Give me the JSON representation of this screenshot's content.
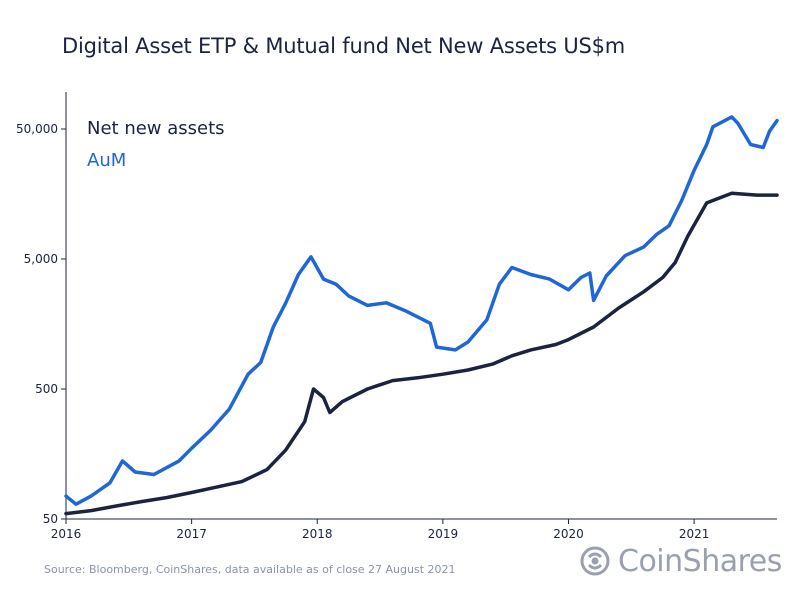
{
  "chart_data": {
    "type": "line",
    "title": "Digital Asset ETP & Mutual fund Net New Assets US$m",
    "y_scale": "log",
    "ylim": [
      50,
      100000
    ],
    "xlim": [
      2016.0,
      2021.66
    ],
    "y_ticks": [
      50,
      500,
      5000,
      50000
    ],
    "y_tick_labels": [
      "50",
      "500",
      "5,000",
      "50,000"
    ],
    "x_ticks": [
      2016,
      2017,
      2018,
      2019,
      2020,
      2021
    ],
    "x_tick_labels": [
      "2016",
      "2017",
      "2018",
      "2019",
      "2020",
      "2021"
    ],
    "legend": [
      "Net new assets",
      "AuM"
    ],
    "series": [
      {
        "name": "Net new assets",
        "color": "#1b2340",
        "points": [
          [
            2016.0,
            55
          ],
          [
            2016.2,
            58
          ],
          [
            2016.4,
            63
          ],
          [
            2016.6,
            68
          ],
          [
            2016.8,
            73
          ],
          [
            2017.0,
            80
          ],
          [
            2017.2,
            88
          ],
          [
            2017.4,
            97
          ],
          [
            2017.6,
            120
          ],
          [
            2017.75,
            170
          ],
          [
            2017.9,
            280
          ],
          [
            2017.97,
            500
          ],
          [
            2018.05,
            430
          ],
          [
            2018.1,
            330
          ],
          [
            2018.2,
            400
          ],
          [
            2018.4,
            500
          ],
          [
            2018.6,
            580
          ],
          [
            2018.8,
            610
          ],
          [
            2019.0,
            650
          ],
          [
            2019.2,
            700
          ],
          [
            2019.4,
            780
          ],
          [
            2019.55,
            900
          ],
          [
            2019.7,
            1000
          ],
          [
            2019.9,
            1100
          ],
          [
            2020.0,
            1200
          ],
          [
            2020.2,
            1500
          ],
          [
            2020.4,
            2100
          ],
          [
            2020.6,
            2800
          ],
          [
            2020.75,
            3600
          ],
          [
            2020.85,
            4700
          ],
          [
            2020.95,
            7500
          ],
          [
            2021.1,
            13500
          ],
          [
            2021.3,
            16000
          ],
          [
            2021.5,
            15500
          ],
          [
            2021.66,
            15500
          ]
        ]
      },
      {
        "name": "AuM",
        "color": "#1f66d8",
        "points": [
          [
            2016.0,
            75
          ],
          [
            2016.08,
            65
          ],
          [
            2016.2,
            75
          ],
          [
            2016.35,
            95
          ],
          [
            2016.45,
            140
          ],
          [
            2016.55,
            115
          ],
          [
            2016.7,
            110
          ],
          [
            2016.9,
            140
          ],
          [
            2017.0,
            175
          ],
          [
            2017.15,
            240
          ],
          [
            2017.3,
            350
          ],
          [
            2017.45,
            650
          ],
          [
            2017.55,
            800
          ],
          [
            2017.65,
            1500
          ],
          [
            2017.75,
            2300
          ],
          [
            2017.85,
            3800
          ],
          [
            2017.95,
            5200
          ],
          [
            2018.05,
            3500
          ],
          [
            2018.15,
            3200
          ],
          [
            2018.25,
            2600
          ],
          [
            2018.4,
            2200
          ],
          [
            2018.55,
            2300
          ],
          [
            2018.7,
            2000
          ],
          [
            2018.9,
            1600
          ],
          [
            2018.95,
            1050
          ],
          [
            2019.1,
            1000
          ],
          [
            2019.2,
            1150
          ],
          [
            2019.35,
            1700
          ],
          [
            2019.45,
            3200
          ],
          [
            2019.55,
            4300
          ],
          [
            2019.7,
            3800
          ],
          [
            2019.85,
            3500
          ],
          [
            2020.0,
            2900
          ],
          [
            2020.1,
            3600
          ],
          [
            2020.17,
            3900
          ],
          [
            2020.2,
            2400
          ],
          [
            2020.3,
            3700
          ],
          [
            2020.45,
            5300
          ],
          [
            2020.6,
            6200
          ],
          [
            2020.7,
            7700
          ],
          [
            2020.8,
            9000
          ],
          [
            2020.9,
            14000
          ],
          [
            2021.0,
            24000
          ],
          [
            2021.1,
            38000
          ],
          [
            2021.15,
            52000
          ],
          [
            2021.3,
            62000
          ],
          [
            2021.35,
            55000
          ],
          [
            2021.45,
            38000
          ],
          [
            2021.55,
            36000
          ],
          [
            2021.6,
            48000
          ],
          [
            2021.66,
            58000
          ]
        ]
      }
    ],
    "source": "Source: Bloomberg, CoinShares, data available as of close 27 August 2021"
  },
  "brand": {
    "name": "CoinShares",
    "icon": "coinshares-logo-icon",
    "color": "#9aa0ad"
  }
}
